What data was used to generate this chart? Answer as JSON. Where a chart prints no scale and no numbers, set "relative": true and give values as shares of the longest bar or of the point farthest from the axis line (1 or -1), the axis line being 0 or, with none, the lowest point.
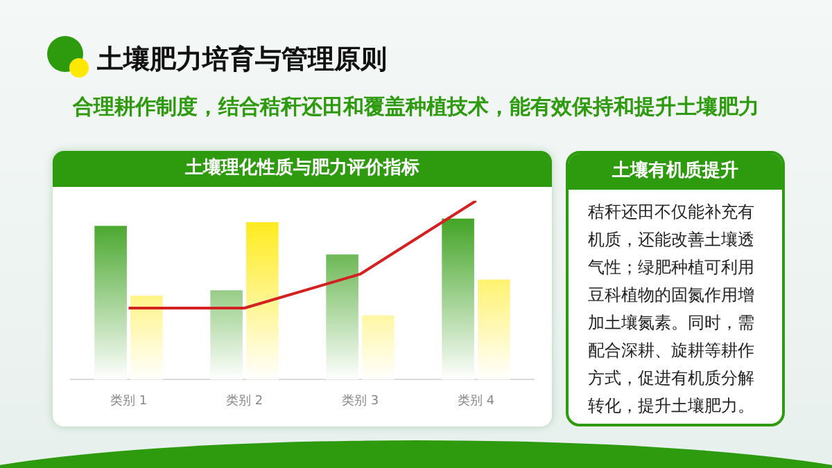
{
  "chart_data": {
    "type": "bar",
    "title": "土壤肥力培育与管理原则",
    "subtitle": "合理耕作制度，结合秸秆还田和覆盖种植技术，能有效保持和提升土壤肥力",
    "annotations": [
      "土壤理化性质与肥力评价指标",
      "土壤有机质提升",
      "秸秆还田不仅能补充有机质，还能改善土壤透气性；绿肥种植可利用豆科植物的固氮作用增加土壤氮素。同时，需配合深耕、旋耕等耕作方式，促进有机质分解转化，提升土壤肥力。"
    ],
    "categories": [
      "类别 1",
      "类别 2",
      "类别 3",
      "类别 4"
    ],
    "relative": true,
    "grid": false,
    "legend": false,
    "marker": "none",
    "series": [
      {
        "color": "#2e9a0e",
        "values": [
          0.86,
          0.5,
          0.7,
          0.9
        ]
      },
      {
        "color": "#ffe800",
        "values": [
          0.47,
          0.88,
          0.36,
          0.56
        ]
      },
      {
        "type": "line",
        "color": "#d42020",
        "values": [
          0.4,
          0.4,
          0.59,
          1
        ]
      }
    ]
  }
}
